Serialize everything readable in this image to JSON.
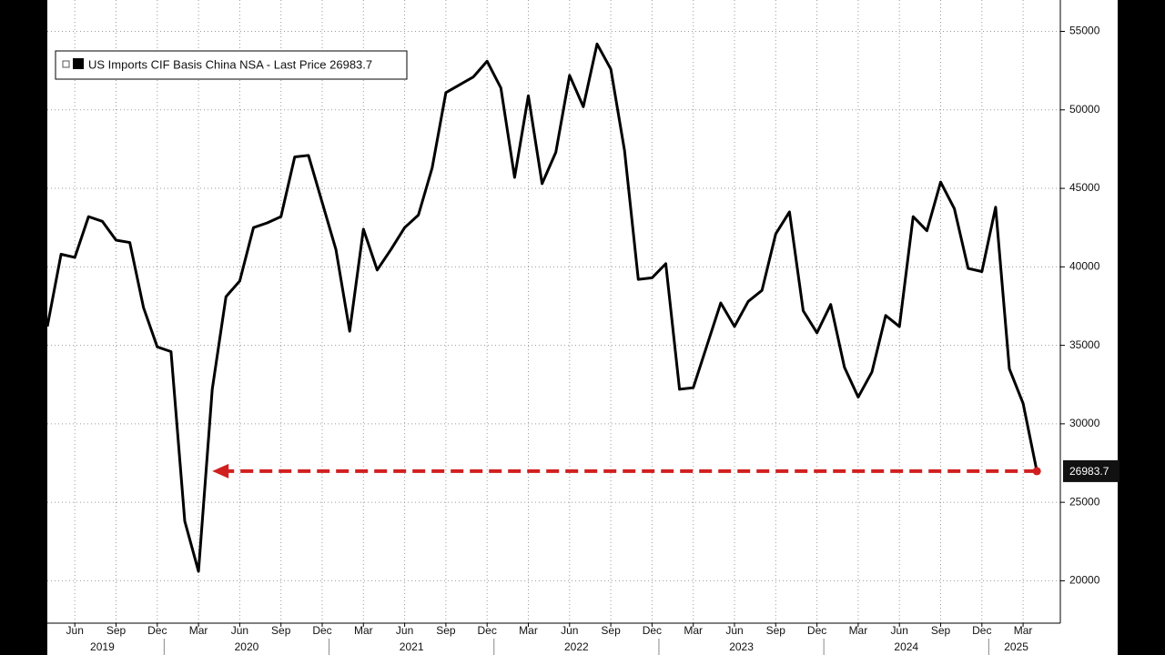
{
  "chart_data": {
    "type": "line",
    "series": [
      {
        "name": "US Imports CIF Basis China NSA - Last Price 26983.7",
        "color": "#000000",
        "values": [
          36200,
          40800,
          40600,
          43200,
          42900,
          41700,
          41550,
          37400,
          34900,
          34600,
          23800,
          20600,
          32200,
          38100,
          39100,
          42500,
          42800,
          43200,
          47000,
          47100,
          44100,
          41100,
          35900,
          42400,
          39800,
          41100,
          42500,
          43300,
          46300,
          51100,
          51600,
          52100,
          53100,
          51400,
          45700,
          50900,
          45300,
          47300,
          52200,
          50200,
          54200,
          52600,
          47400,
          39200,
          39300,
          40200,
          32200,
          32300,
          35000,
          37700,
          36200,
          37800,
          38500,
          42100,
          43500,
          37200,
          35800,
          37600,
          33600,
          31700,
          33300,
          36900,
          36200,
          43200,
          42300,
          45400,
          43700,
          39900,
          39700,
          43800,
          33500,
          31300,
          26983.7
        ]
      }
    ],
    "x": [
      "2019-04",
      "2019-05",
      "2019-06",
      "2019-07",
      "2019-08",
      "2019-09",
      "2019-10",
      "2019-11",
      "2019-12",
      "2020-01",
      "2020-02",
      "2020-03",
      "2020-04",
      "2020-05",
      "2020-06",
      "2020-07",
      "2020-08",
      "2020-09",
      "2020-10",
      "2020-11",
      "2020-12",
      "2021-01",
      "2021-02",
      "2021-03",
      "2021-04",
      "2021-05",
      "2021-06",
      "2021-07",
      "2021-08",
      "2021-09",
      "2021-10",
      "2021-11",
      "2021-12",
      "2022-01",
      "2022-02",
      "2022-03",
      "2022-04",
      "2022-05",
      "2022-06",
      "2022-07",
      "2022-08",
      "2022-09",
      "2022-10",
      "2022-11",
      "2022-12",
      "2023-01",
      "2023-02",
      "2023-03",
      "2023-04",
      "2023-05",
      "2023-06",
      "2023-07",
      "2023-08",
      "2023-09",
      "2023-10",
      "2023-11",
      "2023-12",
      "2024-01",
      "2024-02",
      "2024-03",
      "2024-04",
      "2024-05",
      "2024-06",
      "2024-07",
      "2024-08",
      "2024-09",
      "2024-10",
      "2024-11",
      "2024-12",
      "2025-01",
      "2025-02",
      "2025-03",
      "2025-04"
    ],
    "xticks": [
      {
        "value": "2019-06",
        "label": "Jun"
      },
      {
        "value": "2019-09",
        "label": "Sep"
      },
      {
        "value": "2019-12",
        "label": "Dec"
      },
      {
        "value": "2020-03",
        "label": "Mar"
      },
      {
        "value": "2020-06",
        "label": "Jun"
      },
      {
        "value": "2020-09",
        "label": "Sep"
      },
      {
        "value": "2020-12",
        "label": "Dec"
      },
      {
        "value": "2021-03",
        "label": "Mar"
      },
      {
        "value": "2021-06",
        "label": "Jun"
      },
      {
        "value": "2021-09",
        "label": "Sep"
      },
      {
        "value": "2021-12",
        "label": "Dec"
      },
      {
        "value": "2022-03",
        "label": "Mar"
      },
      {
        "value": "2022-06",
        "label": "Jun"
      },
      {
        "value": "2022-09",
        "label": "Sep"
      },
      {
        "value": "2022-12",
        "label": "Dec"
      },
      {
        "value": "2023-03",
        "label": "Mar"
      },
      {
        "value": "2023-06",
        "label": "Jun"
      },
      {
        "value": "2023-09",
        "label": "Sep"
      },
      {
        "value": "2023-12",
        "label": "Dec"
      },
      {
        "value": "2024-03",
        "label": "Mar"
      },
      {
        "value": "2024-06",
        "label": "Jun"
      },
      {
        "value": "2024-09",
        "label": "Sep"
      },
      {
        "value": "2024-12",
        "label": "Dec"
      },
      {
        "value": "2025-03",
        "label": "Mar"
      }
    ],
    "years": [
      "2019",
      "2020",
      "2021",
      "2022",
      "2023",
      "2024",
      "2025"
    ],
    "ylim": [
      17300,
      57000
    ],
    "yticks": [
      20000,
      25000,
      30000,
      35000,
      40000,
      45000,
      50000,
      55000
    ],
    "grid": true,
    "annotation_color": "#d11f1f",
    "legend": "upper left"
  }
}
